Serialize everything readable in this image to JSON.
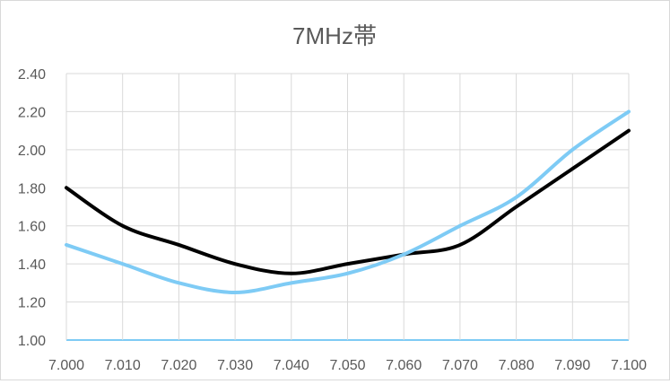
{
  "chart_data": {
    "type": "line",
    "title": "7MHz帯",
    "xlabel": "",
    "ylabel": "",
    "x": [
      7.0,
      7.01,
      7.02,
      7.03,
      7.04,
      7.05,
      7.06,
      7.07,
      7.08,
      7.09,
      7.1
    ],
    "x_tick_labels": [
      "7.000",
      "7.010",
      "7.020",
      "7.030",
      "7.040",
      "7.050",
      "7.060",
      "7.070",
      "7.080",
      "7.090",
      "7.100"
    ],
    "y_tick_labels": [
      "1.00",
      "1.20",
      "1.40",
      "1.60",
      "1.80",
      "2.00",
      "2.20",
      "2.40"
    ],
    "xlim": [
      7.0,
      7.1
    ],
    "ylim": [
      1.0,
      2.4
    ],
    "grid": true,
    "legend": "none",
    "series": [
      {
        "color": "#000000",
        "values": [
          1.8,
          1.6,
          1.5,
          1.4,
          1.35,
          1.4,
          1.45,
          1.5,
          1.7,
          1.9,
          2.1
        ]
      },
      {
        "color": "#7ecbf5",
        "values": [
          1.5,
          1.4,
          1.3,
          1.25,
          1.3,
          1.35,
          1.45,
          1.6,
          1.75,
          2.0,
          2.2
        ]
      }
    ],
    "colors": {
      "grid": "#d9d9d9",
      "axis": "#7ecbf5",
      "text": "#595959"
    }
  }
}
